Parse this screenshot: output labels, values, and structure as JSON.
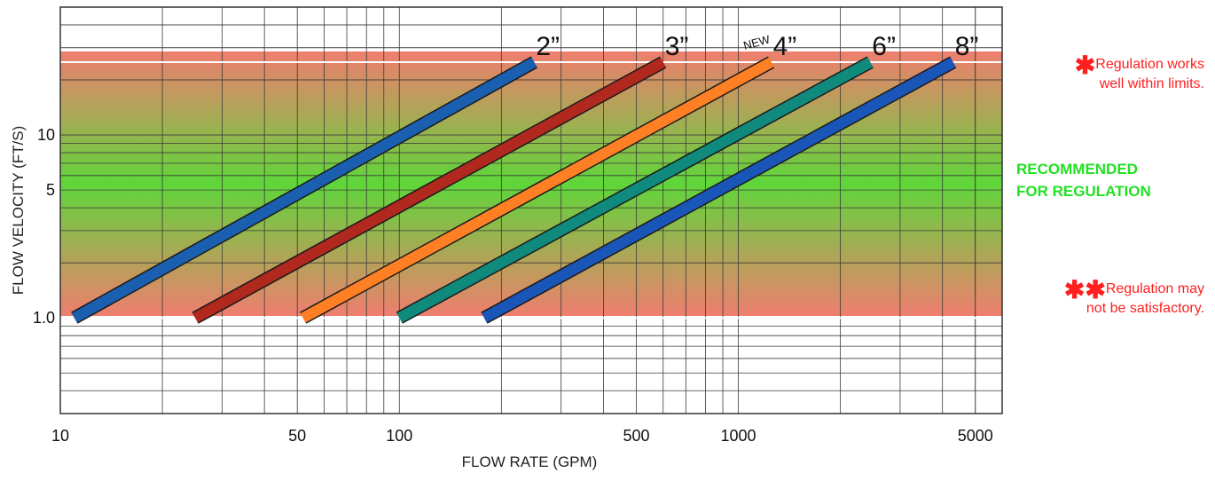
{
  "chart_data": {
    "type": "line",
    "title": "",
    "xlabel": "FLOW RATE (GPM)",
    "ylabel": "FLOW VELOCITY (FT/S)",
    "xscale": "log",
    "yscale": "log",
    "xlim": [
      10,
      6000
    ],
    "ylim": [
      0.3,
      50
    ],
    "x_tick_labels": [
      {
        "value": 10,
        "label": "10"
      },
      {
        "value": 50,
        "label": "50"
      },
      {
        "value": 100,
        "label": "100"
      },
      {
        "value": 500,
        "label": "500"
      },
      {
        "value": 1000,
        "label": "1000"
      },
      {
        "value": 5000,
        "label": "5000"
      }
    ],
    "y_tick_labels": [
      {
        "value": 1,
        "label": "1.0"
      },
      {
        "value": 5,
        "label": "5"
      },
      {
        "value": 10,
        "label": "10"
      }
    ],
    "grid": true,
    "bands": [
      {
        "name": "recommended",
        "range": [
          1,
          25
        ],
        "edge_color": "#ef7e6f",
        "center_color": "#5fd63a"
      }
    ],
    "series": [
      {
        "name": "2”",
        "prefix": "",
        "x": [
          11,
          250
        ],
        "y": [
          1.0,
          25
        ],
        "color": "#1a5fb0"
      },
      {
        "name": "3”",
        "prefix": "",
        "x": [
          25,
          600
        ],
        "y": [
          1.0,
          25
        ],
        "color": "#b0281e"
      },
      {
        "name": "4”",
        "prefix": "NEW",
        "x": [
          52,
          1250
        ],
        "y": [
          1.0,
          25
        ],
        "color": "#ff7f24"
      },
      {
        "name": "6”",
        "prefix": "",
        "x": [
          100,
          2450
        ],
        "y": [
          1.0,
          25
        ],
        "color": "#0f8a7c"
      },
      {
        "name": "8”",
        "prefix": "",
        "x": [
          178,
          4300
        ],
        "y": [
          1.0,
          25
        ],
        "color": "#1a55b8"
      }
    ]
  },
  "notes": {
    "top_star": "✱",
    "top_line1": "Regulation works",
    "top_line2": "well within limits.",
    "recommended_line1": "RECOMMENDED",
    "recommended_line2": "FOR REGULATION",
    "bottom_star": "✱✱",
    "bottom_line1": "Regulation may",
    "bottom_line2": "not be satisfactory."
  },
  "colors": {
    "note_red": "#ff1f1f",
    "recommended_green": "#22e022"
  }
}
